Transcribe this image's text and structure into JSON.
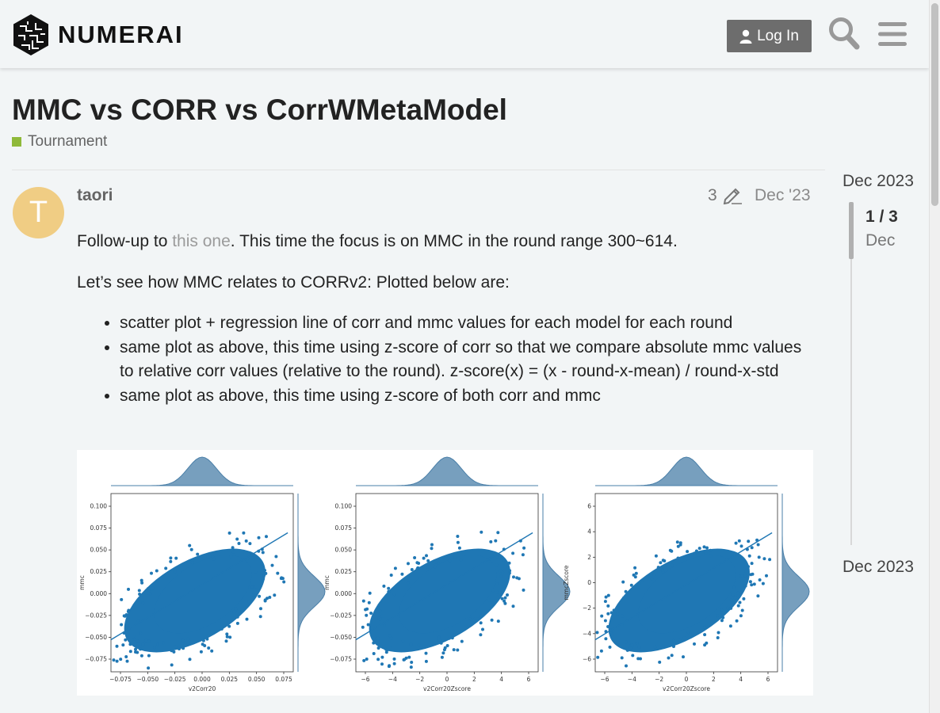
{
  "header": {
    "logo_text": "NUMERAI",
    "login_label": "Log In",
    "icons": [
      "user-icon",
      "search-icon",
      "hamburger-menu-icon"
    ]
  },
  "topic": {
    "title": "MMC vs CORR vs CorrWMetaModel",
    "category": "Tournament",
    "category_color": "#8fb93a"
  },
  "post": {
    "avatar_letter": "T",
    "avatar_color": "#f0cd84",
    "username": "taori",
    "edit_count": "3",
    "date": "Dec '23",
    "para1_before": "Follow-up to ",
    "para1_link": "this one",
    "para1_after": ". This time the focus is on MMC in the round range 300~614.",
    "para2": "Let’s see how MMC relates to CORRv2: Plotted below are:",
    "bullets": [
      "scatter plot + regression line of corr and mmc values for each model for each round",
      "same plot as above, this time using z-score of corr so that we compare absolute mmc values to relative corr values (relative to the round). z-score(x) = (x - round-x-mean) / round-x-std",
      "same plot as above, this time using z-score of both corr and mmc"
    ]
  },
  "figure": {
    "panels": [
      {
        "xlabel": "v2Corr20",
        "ylabel": "mmc",
        "xticks": [
          "−0.075",
          "−0.050",
          "−0.025",
          "0.000",
          "0.025",
          "0.050",
          "0.075"
        ],
        "yticks": [
          "0.100",
          "0.075",
          "0.050",
          "0.025",
          "0.000",
          "−0.025",
          "−0.050",
          "−0.075"
        ]
      },
      {
        "xlabel": "v2Corr20Zscore",
        "ylabel": "mmc",
        "xticks": [
          "−6",
          "−4",
          "−2",
          "0",
          "2",
          "4",
          "6"
        ],
        "yticks": [
          "0.100",
          "0.075",
          "0.050",
          "0.025",
          "0.000",
          "−0.025",
          "−0.050",
          "−0.075"
        ]
      },
      {
        "xlabel": "v2Corr20Zscore",
        "ylabel": "mmcZscore",
        "xticks": [
          "−6",
          "−4",
          "−2",
          "0",
          "2",
          "4",
          "6"
        ],
        "yticks": [
          "6",
          "4",
          "2",
          "0",
          "−2",
          "−4",
          "−6"
        ]
      }
    ],
    "point_color": "#1f77b4",
    "kde_color": "#4a7fa8"
  },
  "timeline": {
    "top_date": "Dec 2023",
    "position": "1 / 3",
    "current_date": "Dec",
    "bottom_date": "Dec 2023"
  }
}
